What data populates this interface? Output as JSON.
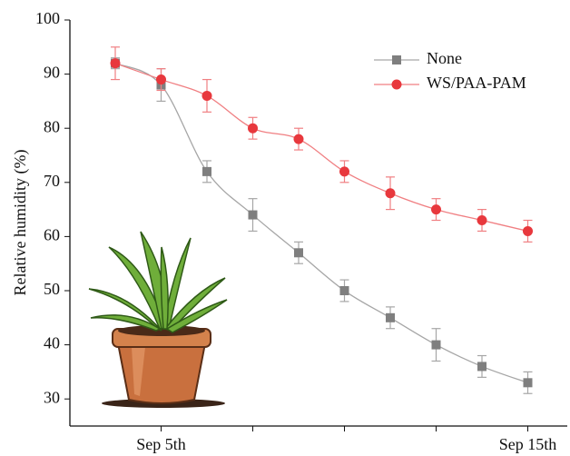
{
  "chart_data": {
    "type": "line",
    "y_label": "Relative humidity (%)",
    "categories": [
      null,
      "Sep 5th",
      null,
      null,
      null,
      null,
      null,
      null,
      null,
      "Sep 15th"
    ],
    "series": [
      {
        "name": "None",
        "color": "#7f7f7f",
        "line_color": "#a6a6a6",
        "marker": "square",
        "values": [
          92,
          88,
          72,
          64,
          57,
          50,
          45,
          40,
          36,
          33
        ],
        "errors": [
          1,
          3,
          2,
          3,
          2,
          2,
          2,
          3,
          2,
          2
        ]
      },
      {
        "name": "WS/PAA-PAM",
        "color": "#e8383d",
        "line_color": "#f07f82",
        "marker": "circle",
        "values": [
          92,
          89,
          86,
          80,
          78,
          72,
          68,
          65,
          63,
          61
        ],
        "errors": [
          3,
          2,
          3,
          2,
          2,
          2,
          3,
          2,
          2,
          2
        ]
      }
    ],
    "ylim": [
      25,
      100
    ],
    "yticks": [
      30,
      40,
      50,
      60,
      70,
      80,
      90,
      100
    ],
    "legend": "upper right"
  }
}
